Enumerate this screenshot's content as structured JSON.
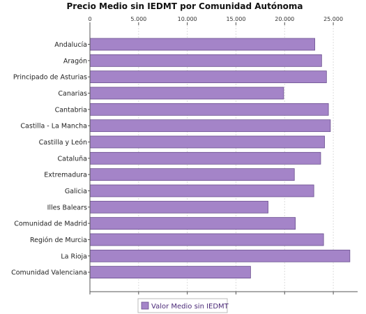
{
  "chart_data": {
    "type": "bar",
    "orientation": "horizontal",
    "title": "Precio Medio sin IEDMT por Comunidad Autónoma",
    "xlabel": "",
    "ylabel": "",
    "categories": [
      "Andalucía",
      "Aragón",
      "Principado de Asturias",
      "Canarias",
      "Cantabria",
      "Castilla - La Mancha",
      "Castilla y León",
      "Cataluña",
      "Extremadura",
      "Galicia",
      "Illes Balears",
      "Comunidad de Madrid",
      "Región de Murcia",
      "La Rioja",
      "Comunidad Valenciana"
    ],
    "series": [
      {
        "name": "Valor Medio sin IEDMT",
        "values": [
          23100,
          23800,
          24300,
          19900,
          24500,
          24700,
          24100,
          23700,
          21000,
          23000,
          18300,
          21100,
          24000,
          26700,
          16500
        ]
      }
    ],
    "xlim": [
      0,
      27500
    ],
    "ticks": [
      0,
      5000,
      10000,
      15000,
      20000,
      25000
    ],
    "tick_labels": [
      "0",
      "5.000",
      "10.000",
      "15.000",
      "20.000",
      "25.000"
    ],
    "grid": true,
    "legend_position": "bottom",
    "colors": {
      "bar_fill": "#a484c8",
      "bar_stroke": "#6a4f8e",
      "grid": "#dddddd",
      "axis": "#555555"
    }
  }
}
